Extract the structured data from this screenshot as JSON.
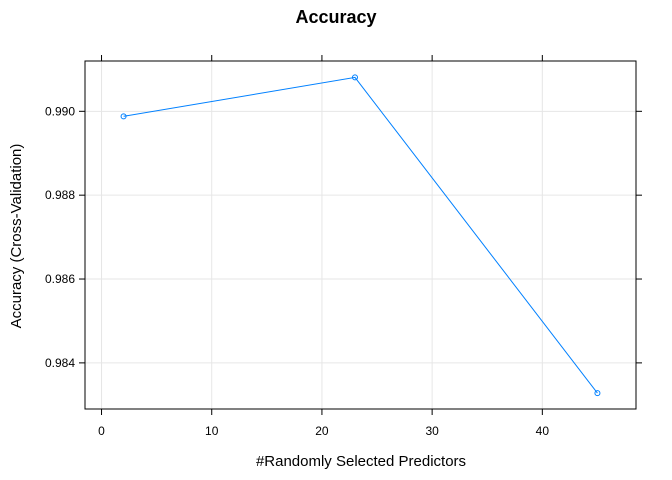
{
  "chart_data": {
    "type": "line",
    "title": "Accuracy",
    "xlabel": "#Randomly Selected Predictors",
    "ylabel": "Accuracy (Cross-Validation)",
    "x": [
      2,
      23,
      45
    ],
    "series": [
      {
        "values": [
          0.98988,
          0.99081,
          0.98328
        ]
      }
    ],
    "xlim": [
      -1.5,
      48.5
    ],
    "ylim": [
      0.9829,
      0.9912
    ],
    "xticks": [
      0,
      10,
      20,
      30,
      40
    ],
    "yticks": [
      0.984,
      0.986,
      0.988,
      0.99
    ],
    "ytick_labels": [
      "0.984",
      "0.986",
      "0.988",
      "0.990"
    ],
    "grid": true,
    "colors": {
      "line": "#0080ff",
      "grid": "#e6e6e6",
      "frame": "#000000"
    }
  }
}
